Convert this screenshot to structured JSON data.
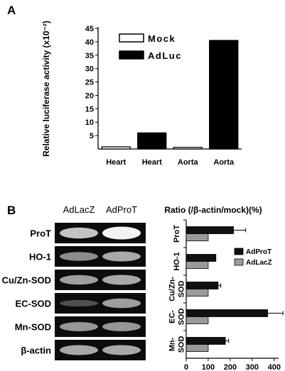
{
  "panel_a_label": "A",
  "panel_b_label": "B",
  "chart_data": [
    {
      "type": "bar",
      "panel": "A",
      "ylabel": "Relative luciferase activity (x10⁻²)",
      "yticks": [
        5,
        10,
        15,
        20,
        25,
        30,
        35,
        40,
        45
      ],
      "ylim": [
        0,
        45
      ],
      "categories": [
        "Heart",
        "Heart",
        "Aorta",
        "Aorta"
      ],
      "values": [
        0.8,
        6,
        0.6,
        40.5
      ],
      "bar_series": [
        "Mock",
        "AdLuc",
        "Mock",
        "AdLuc"
      ],
      "legend": [
        {
          "name": "Mock",
          "fill": "#ffffff"
        },
        {
          "name": "AdLuc",
          "fill": "#000000"
        }
      ],
      "legend_position": "top-left"
    },
    {
      "type": "bar",
      "panel": "B",
      "orientation": "horizontal",
      "title": "Ratio (/β-actin/mock)(%)",
      "categories": [
        "ProT",
        "HO-1",
        "Cu/Zn-SOD",
        "EC-SOD",
        "Mn-SOD"
      ],
      "category_lines": [
        [
          "ProT"
        ],
        [
          "HO-1"
        ],
        [
          "Cu/Zn-",
          "SOD"
        ],
        [
          "EC-",
          "SOD"
        ],
        [
          "Mn-",
          "SOD"
        ]
      ],
      "xticks": [
        0,
        100,
        200,
        300,
        400
      ],
      "xlim": [
        0,
        420
      ],
      "series": [
        {
          "name": "AdProT",
          "color": "#111111",
          "values": [
            215,
            135,
            145,
            370,
            178
          ],
          "errors": [
            55,
            0,
            12,
            70,
            15
          ]
        },
        {
          "name": "AdLacZ",
          "color": "#9a9a9a",
          "values": [
            100,
            100,
            100,
            100,
            100
          ],
          "errors": [
            0,
            0,
            0,
            0,
            0
          ]
        }
      ],
      "legend_position": "right"
    }
  ],
  "gel": {
    "columns": [
      "AdLacZ",
      "AdProT"
    ],
    "rows": [
      {
        "label": "ProT",
        "band": [
          0.75,
          1.0
        ]
      },
      {
        "label": "HO-1",
        "band": [
          0.45,
          0.6
        ]
      },
      {
        "label": "Cu/Zn-SOD",
        "band": [
          0.55,
          0.6
        ]
      },
      {
        "label": "EC-SOD",
        "band": [
          0.12,
          0.55
        ]
      },
      {
        "label": "Mn-SOD",
        "band": [
          0.5,
          0.5
        ]
      },
      {
        "label": "β-actin",
        "band": [
          0.6,
          0.6
        ]
      }
    ]
  }
}
